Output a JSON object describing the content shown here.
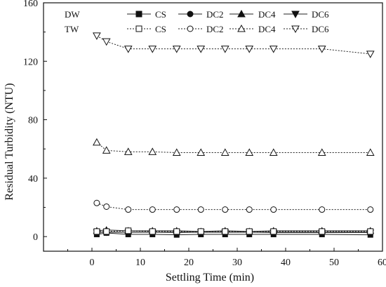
{
  "chart_data": {
    "type": "scatter",
    "title": "",
    "xlabel": "Settling Time (min)",
    "ylabel": "Residual Turbidity (NTU)",
    "xlim": [
      -10,
      60
    ],
    "ylim": [
      -10,
      160
    ],
    "xticks": [
      0,
      10,
      20,
      30,
      40,
      50,
      60
    ],
    "yticks": [
      0,
      40,
      80,
      120,
      160
    ],
    "grid": false,
    "legend": {
      "placement": "top-center",
      "rows": [
        {
          "label": "DW",
          "entries": [
            {
              "name": "CS",
              "marker": "square",
              "fill": "filled",
              "line": "solid"
            },
            {
              "name": "DC2",
              "marker": "circle",
              "fill": "filled",
              "line": "solid"
            },
            {
              "name": "DC4",
              "marker": "triangle-up",
              "fill": "filled",
              "line": "solid"
            },
            {
              "name": "DC6",
              "marker": "triangle-down",
              "fill": "filled",
              "line": "solid"
            }
          ]
        },
        {
          "label": "TW",
          "entries": [
            {
              "name": "CS",
              "marker": "square",
              "fill": "open",
              "line": "dashed"
            },
            {
              "name": "DC2",
              "marker": "circle",
              "fill": "open",
              "line": "dashed"
            },
            {
              "name": "DC4",
              "marker": "triangle-up",
              "fill": "open",
              "line": "dashed"
            },
            {
              "name": "DC6",
              "marker": "triangle-down",
              "fill": "open",
              "line": "dashed"
            }
          ]
        }
      ]
    },
    "x": [
      1,
      3,
      7.5,
      12.5,
      17.5,
      22.5,
      27.5,
      32.5,
      37.5,
      47.5,
      57.5
    ],
    "series": [
      {
        "name": "DW CS",
        "marker": "square",
        "fill": "filled",
        "line": "solid",
        "values": [
          1.5,
          2.5,
          1.5,
          1.5,
          1.2,
          1.5,
          1.5,
          1.5,
          1.5,
          1.5,
          1.2
        ]
      },
      {
        "name": "DW DC2",
        "marker": "circle",
        "fill": "filled",
        "line": "solid",
        "values": [
          3,
          3,
          3,
          3,
          3,
          3,
          3,
          3,
          3,
          3,
          3
        ]
      },
      {
        "name": "DW DC4",
        "marker": "triangle-up",
        "fill": "filled",
        "line": "solid",
        "values": [
          4,
          4.5,
          4,
          4,
          4,
          3.5,
          4,
          3.5,
          4,
          4,
          4
        ]
      },
      {
        "name": "DW DC6",
        "marker": "triangle-down",
        "fill": "filled",
        "line": "solid",
        "values": [
          3,
          3,
          3,
          3,
          2.8,
          3,
          3,
          3,
          2.8,
          2.8,
          2.8
        ]
      },
      {
        "name": "TW CS",
        "marker": "square",
        "fill": "open",
        "line": "dashed",
        "values": [
          3.5,
          3.5,
          4,
          3.5,
          3.5,
          3.5,
          3.5,
          3.5,
          3.5,
          3.5,
          3.5
        ]
      },
      {
        "name": "TW DC2",
        "marker": "circle",
        "fill": "open",
        "line": "dashed",
        "values": [
          23,
          20.5,
          18.5,
          18.5,
          18.5,
          18.5,
          18.5,
          18.5,
          18.5,
          18.5,
          18.5
        ]
      },
      {
        "name": "TW DC4",
        "marker": "triangle-up",
        "fill": "open",
        "line": "dashed",
        "values": [
          64.5,
          59,
          58,
          58,
          57.5,
          57.5,
          57.5,
          57.5,
          57.5,
          57.5,
          57.5
        ]
      },
      {
        "name": "TW DC6",
        "marker": "triangle-down",
        "fill": "open",
        "line": "dashed",
        "values": [
          137.5,
          133.5,
          128.5,
          128.5,
          128.5,
          128.5,
          128.5,
          128.5,
          128.5,
          128.5,
          125
        ]
      }
    ]
  }
}
